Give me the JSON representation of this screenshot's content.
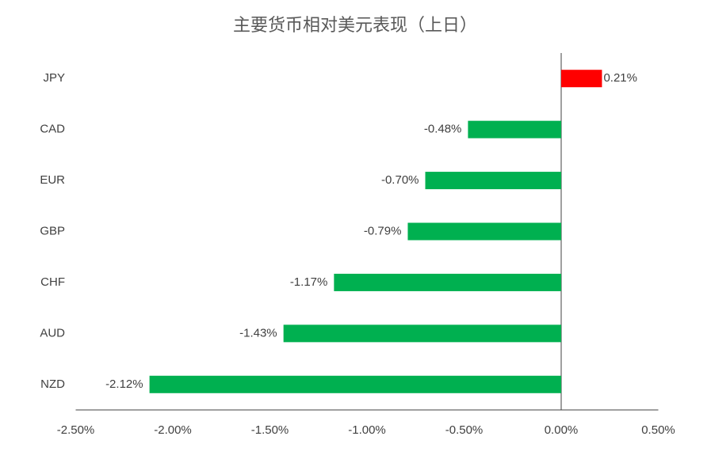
{
  "chart_data": {
    "type": "bar",
    "orientation": "horizontal",
    "title": "主要货币相对美元表现（上日）",
    "categories": [
      "JPY",
      "CAD",
      "EUR",
      "GBP",
      "CHF",
      "AUD",
      "NZD"
    ],
    "values": [
      0.21,
      -0.48,
      -0.7,
      -0.79,
      -1.17,
      -1.43,
      -2.12
    ],
    "value_labels": [
      "0.21%",
      "-0.48%",
      "-0.70%",
      "-0.79%",
      "-1.17%",
      "-1.43%",
      "-2.12%"
    ],
    "colors": [
      "#ff0000",
      "#00b050",
      "#00b050",
      "#00b050",
      "#00b050",
      "#00b050",
      "#00b050"
    ],
    "xlim": [
      -2.5,
      0.5
    ],
    "xticks": [
      {
        "value": -2.5,
        "label": "-2.50%"
      },
      {
        "value": -2.0,
        "label": "-2.00%"
      },
      {
        "value": -1.5,
        "label": "-1.50%"
      },
      {
        "value": -1.0,
        "label": "-1.00%"
      },
      {
        "value": -0.5,
        "label": "-0.50%"
      },
      {
        "value": 0,
        "label": "0.00%"
      },
      {
        "value": 0.5,
        "label": "0.50%"
      }
    ],
    "grid": false
  }
}
